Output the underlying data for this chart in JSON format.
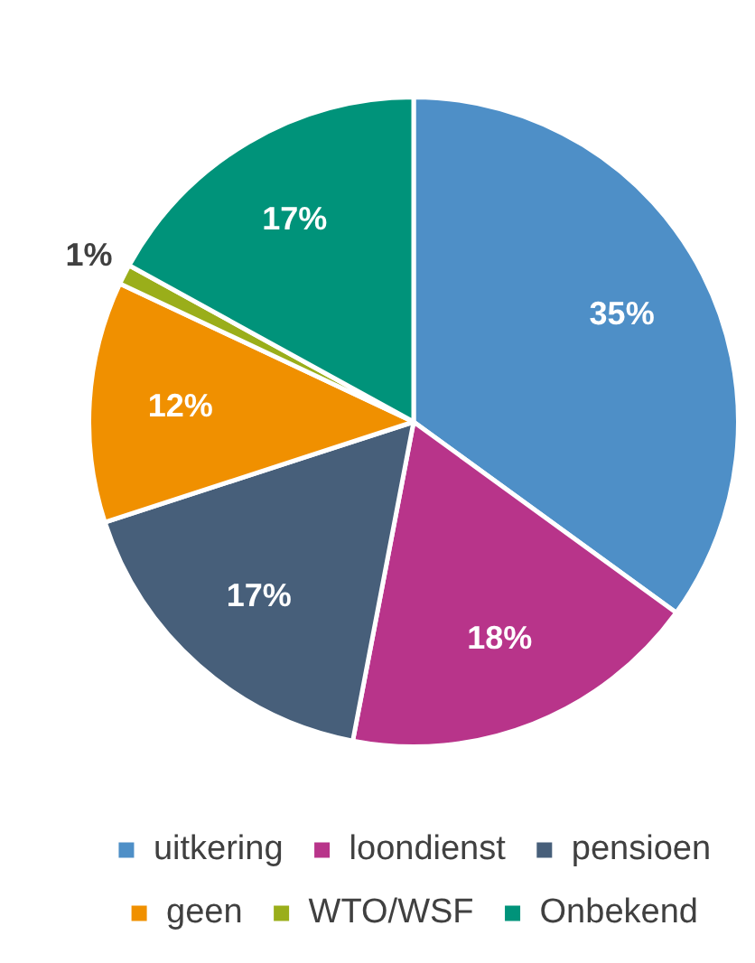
{
  "chart_data": {
    "type": "pie",
    "categories": [
      "uitkering",
      "loondienst",
      "pensioen",
      "geen",
      "WTO/WSF",
      "Onbekend"
    ],
    "values": [
      35,
      18,
      17,
      12,
      1,
      17
    ],
    "colors": [
      "#4e8fc7",
      "#b8348a",
      "#475f7a",
      "#f09000",
      "#9aae1a",
      "#00937a"
    ],
    "value_labels": [
      "35%",
      "18%",
      "17%",
      "12%",
      "1%",
      "17%"
    ],
    "legend": "bottom"
  }
}
